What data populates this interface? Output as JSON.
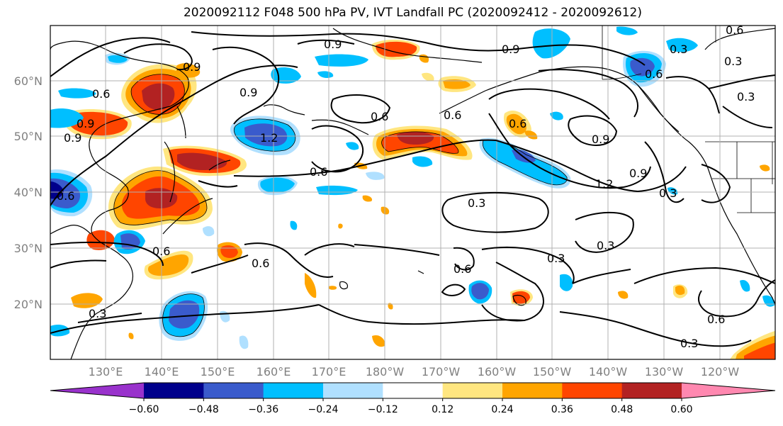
{
  "title": "2020092112 F048 500 hPa PV, IVT Landfall PC (2020092412 - 2020092612)",
  "lat_labels": [
    "60°N",
    "50°N",
    "40°N",
    "30°N",
    "20°N"
  ],
  "lon_labels": [
    "130°E",
    "140°E",
    "150°E",
    "160°E",
    "170°E",
    "180°W",
    "170°W",
    "160°W",
    "150°W",
    "140°W",
    "130°W",
    "120°W"
  ],
  "colorbar": {
    "ticks": [
      "−0.60",
      "−0.48",
      "−0.36",
      "−0.24",
      "−0.12",
      "0.12",
      "0.24",
      "0.36",
      "0.48",
      "0.60"
    ],
    "colors": [
      "#9932cc",
      "#00008b",
      "#3a5bcc",
      "#00bfff",
      "#b0e0ff",
      "#ffffff",
      "#ffe680",
      "#ffa500",
      "#ff4500",
      "#b22222",
      "#ff88b0"
    ]
  },
  "contour_labels": [
    "0.9",
    "0.9",
    "0.9",
    "0.6",
    "0.3",
    "0.3",
    "0.3",
    "0.6",
    "1.2",
    "0.6",
    "0.6",
    "0.9",
    "0.9",
    "1.2",
    "0.9",
    "0.3",
    "0.3",
    "0.3",
    "0.6",
    "0.6",
    "0.6",
    "0.6",
    "0.3",
    "0.6",
    "0.3",
    "0.3",
    "0.6",
    "0.9",
    "0.9",
    "0.6",
    "0.6"
  ]
}
